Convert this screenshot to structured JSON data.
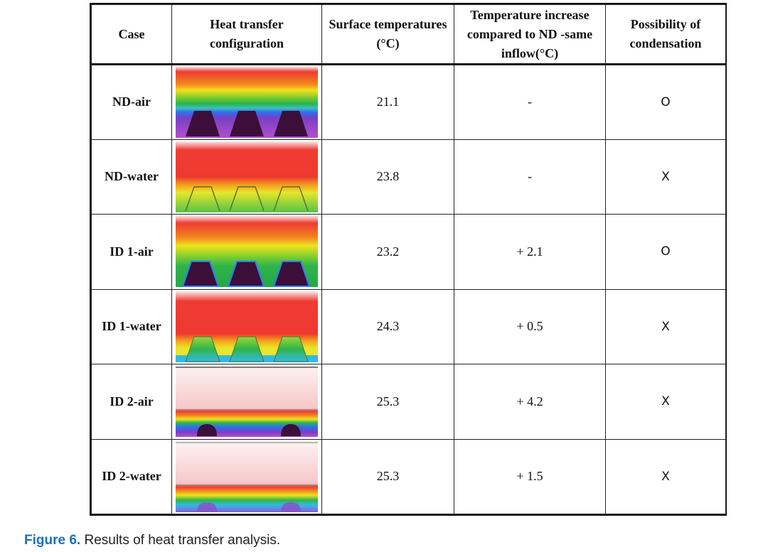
{
  "table": {
    "headers": [
      "Case",
      "Heat transfer configuration",
      "Surface temperatures (°C)",
      "Temperature increase compared to ND -same inflow(°C)",
      "Possibility of condensation"
    ],
    "rows": [
      {
        "case": "ND-air",
        "surface_temp": "21.1",
        "increase": "-",
        "condensation": "O",
        "thumb": "nd-air"
      },
      {
        "case": "ND-water",
        "surface_temp": "23.8",
        "increase": "-",
        "condensation": "X",
        "thumb": "nd-water"
      },
      {
        "case": "ID 1-air",
        "surface_temp": "23.2",
        "increase": "+ 2.1",
        "condensation": "O",
        "thumb": "id1-air"
      },
      {
        "case": "ID 1-water",
        "surface_temp": "24.3",
        "increase": "+ 0.5",
        "condensation": "X",
        "thumb": "id1-water"
      },
      {
        "case": "ID 2-air",
        "surface_temp": "25.3",
        "increase": "+ 4.2",
        "condensation": "X",
        "thumb": "id2-air"
      },
      {
        "case": "ID 2-water",
        "surface_temp": "25.3",
        "increase": "+ 1.5",
        "condensation": "X",
        "thumb": "id2-water"
      }
    ]
  },
  "caption": {
    "label": "Figure 6.",
    "text": " Results of heat transfer analysis."
  }
}
